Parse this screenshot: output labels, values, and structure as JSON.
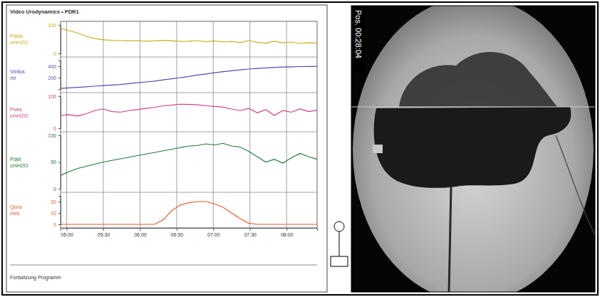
{
  "chart_data": [
    {
      "type": "line",
      "title": "Video Urodynamics • PDR1",
      "ylabel": "Pabd cmH2O",
      "grid": true,
      "tick_labels": "y",
      "x": [
        295,
        302,
        309,
        316,
        323,
        330,
        337,
        344,
        351,
        358,
        365,
        372,
        379,
        386,
        393,
        400,
        407,
        414,
        421,
        428,
        435,
        442,
        449,
        456,
        463,
        470,
        477,
        484,
        491,
        498,
        505
      ],
      "xlim": [
        295,
        505
      ],
      "ylim": [
        0,
        100
      ],
      "yticks": [
        0,
        100
      ],
      "series": [
        {
          "color": "#c8b020",
          "values": [
            88,
            80,
            72,
            60,
            52,
            48,
            46,
            45,
            44,
            45,
            43,
            44,
            46,
            44,
            42,
            43,
            45,
            41,
            44,
            40,
            42,
            38,
            45,
            39,
            36,
            43,
            37,
            40,
            35,
            38,
            36
          ]
        }
      ]
    },
    {
      "type": "line",
      "ylabel": "Vinfus ml",
      "grid": true,
      "tick_labels": "y",
      "x": [
        295,
        302,
        309,
        316,
        323,
        330,
        337,
        344,
        351,
        358,
        365,
        372,
        379,
        386,
        393,
        400,
        407,
        414,
        421,
        428,
        435,
        442,
        449,
        456,
        463,
        470,
        477,
        484,
        491,
        498,
        505
      ],
      "xlim": [
        295,
        505
      ],
      "ylim": [
        0,
        500
      ],
      "yticks": [
        200,
        400
      ],
      "series": [
        {
          "color": "#5050b0",
          "values": [
            10,
            20,
            30,
            40,
            50,
            60,
            70,
            80,
            95,
            110,
            125,
            140,
            160,
            180,
            200,
            220,
            245,
            265,
            285,
            305,
            320,
            335,
            350,
            360,
            370,
            380,
            386,
            390,
            394,
            396,
            398
          ]
        }
      ]
    },
    {
      "type": "line",
      "ylabel": "Pves cmH2O",
      "grid": true,
      "tick_labels": "y",
      "x": [
        295,
        302,
        309,
        316,
        323,
        330,
        337,
        344,
        351,
        358,
        365,
        372,
        379,
        386,
        393,
        400,
        407,
        414,
        421,
        428,
        435,
        442,
        449,
        456,
        463,
        470,
        477,
        484,
        491,
        498,
        505
      ],
      "xlim": [
        295,
        505
      ],
      "ylim": [
        0,
        100
      ],
      "yticks": [
        0,
        100
      ],
      "series": [
        {
          "color": "#d04080",
          "values": [
            40,
            42,
            38,
            45,
            55,
            60,
            52,
            50,
            55,
            58,
            62,
            65,
            70,
            72,
            75,
            74,
            73,
            70,
            68,
            66,
            60,
            55,
            62,
            48,
            58,
            40,
            55,
            50,
            60,
            52,
            56
          ]
        }
      ]
    },
    {
      "type": "line",
      "ylabel": "Pdet cmH2O",
      "grid": true,
      "tick_labels": "y",
      "x": [
        295,
        302,
        309,
        316,
        323,
        330,
        337,
        344,
        351,
        358,
        365,
        372,
        379,
        386,
        393,
        400,
        407,
        414,
        421,
        428,
        435,
        442,
        449,
        456,
        463,
        470,
        477,
        484,
        491,
        498,
        505
      ],
      "xlim": [
        295,
        505
      ],
      "ylim": [
        0,
        100
      ],
      "yticks": [
        0,
        50,
        100
      ],
      "series": [
        {
          "color": "#1f7a3a",
          "values": [
            25,
            32,
            38,
            42,
            46,
            50,
            53,
            56,
            59,
            62,
            65,
            68,
            71,
            74,
            77,
            80,
            81,
            84,
            82,
            85,
            80,
            78,
            70,
            60,
            50,
            55,
            48,
            58,
            66,
            60,
            55
          ]
        }
      ]
    },
    {
      "type": "line",
      "ylabel": "Qura ml/s",
      "xlabel": "Fortsetzung Programm",
      "grid": true,
      "x": [
        295,
        302,
        309,
        316,
        323,
        330,
        337,
        344,
        351,
        358,
        365,
        372,
        379,
        386,
        393,
        400,
        407,
        414,
        421,
        428,
        435,
        442,
        449,
        456,
        463,
        470,
        477,
        484,
        491,
        498,
        505
      ],
      "xlim": [
        295,
        505
      ],
      "ylim": [
        0,
        25
      ],
      "yticks": [
        0,
        10,
        20
      ],
      "xticks": [
        {
          "value": 300,
          "label": "05:00"
        },
        {
          "value": 330,
          "label": "05:30"
        },
        {
          "value": 360,
          "label": "06:00"
        },
        {
          "value": 390,
          "label": "06:30"
        },
        {
          "value": 420,
          "label": "07:00"
        },
        {
          "value": 450,
          "label": "07:30"
        },
        {
          "value": 480,
          "label": "08:00"
        }
      ],
      "series": [
        {
          "color": "#e06030",
          "values": [
            0,
            0,
            0,
            0,
            0,
            0,
            0,
            0,
            0,
            0,
            0,
            0,
            4,
            12,
            17,
            19,
            20,
            20,
            18,
            15,
            10,
            5,
            1,
            0,
            0,
            0,
            0,
            0,
            0,
            0,
            0
          ]
        }
      ]
    }
  ],
  "fluoroscopy": {
    "timestamp": "Pos. 00:28:04"
  }
}
